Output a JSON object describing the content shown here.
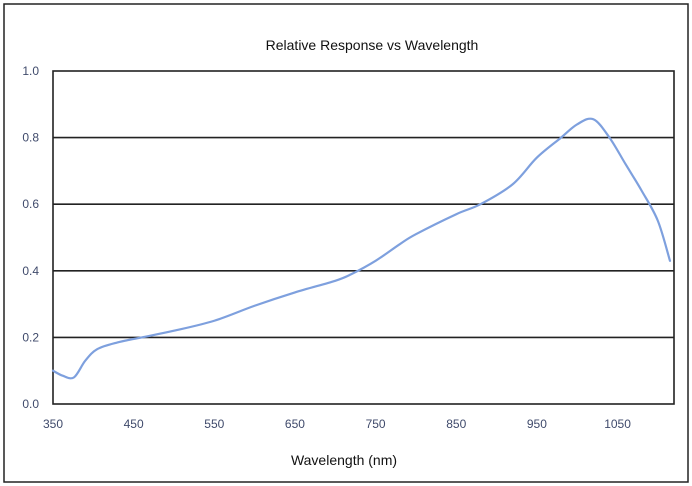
{
  "chart_data": {
    "type": "line",
    "title": "Relative Response vs Wavelength",
    "xlabel": "Wavelength (nm)",
    "ylabel": "",
    "xlim": [
      350,
      1120
    ],
    "ylim": [
      0,
      1
    ],
    "x_ticks": [
      "350",
      "450",
      "550",
      "650",
      "750",
      "850",
      "950",
      "1050"
    ],
    "x_tick_values": [
      350,
      450,
      550,
      650,
      750,
      850,
      950,
      1050
    ],
    "y_ticks": [
      "0.0",
      "0.2",
      "0.4",
      "0.6",
      "0.8",
      "1.0"
    ],
    "y_tick_values": [
      0,
      0.2,
      0.4,
      0.6,
      0.8,
      1.0
    ],
    "grid": "horizontal",
    "legend": "none",
    "colors": {
      "line": "#7ea0de",
      "grid": "#222222",
      "ticks": "#3f4a6b"
    },
    "series": [
      {
        "x": [
          350,
          362,
          376,
          390,
          405,
          430,
          460,
          500,
          550,
          600,
          650,
          700,
          720,
          750,
          780,
          800,
          850,
          880,
          920,
          950,
          980,
          1000,
          1020,
          1040,
          1060,
          1080,
          1100,
          1115
        ],
        "y": [
          0.1,
          0.085,
          0.08,
          0.13,
          0.165,
          0.185,
          0.2,
          0.22,
          0.25,
          0.295,
          0.335,
          0.37,
          0.39,
          0.43,
          0.48,
          0.51,
          0.57,
          0.6,
          0.66,
          0.74,
          0.8,
          0.84,
          0.855,
          0.8,
          0.72,
          0.64,
          0.55,
          0.43
        ]
      }
    ]
  }
}
